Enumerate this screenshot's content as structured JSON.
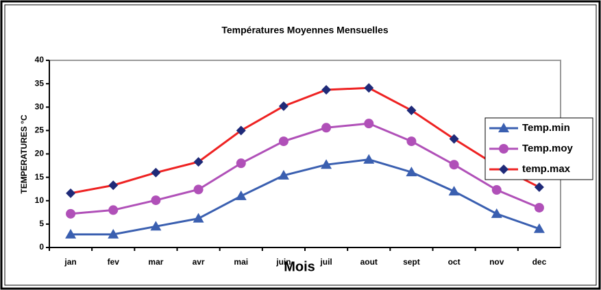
{
  "chart_data": {
    "type": "line",
    "title": "Températures Moyennes Mensuelles",
    "x_label": "Mois",
    "y_label": "TEMPERATURES °C",
    "categories": [
      "jan",
      "fev",
      "mar",
      "avr",
      "mai",
      "juin",
      "juil",
      "aout",
      "sept",
      "oct",
      "nov",
      "dec"
    ],
    "series": [
      {
        "name": "Temp.min",
        "color": "#3a5fb0",
        "marker": "triangle",
        "values": [
          2.8,
          2.8,
          4.5,
          6.2,
          11,
          15.4,
          17.7,
          18.8,
          16.1,
          12,
          7.2,
          4
        ]
      },
      {
        "name": "Temp.moy",
        "color": "#b050b8",
        "marker": "circle",
        "values": [
          7.2,
          8,
          10.1,
          12.4,
          18,
          22.7,
          25.6,
          26.5,
          22.7,
          17.7,
          12.3,
          8.5
        ]
      },
      {
        "name": "temp.max",
        "color": "#ee2222",
        "marker": "diamond",
        "values": [
          11.6,
          13.3,
          16,
          18.3,
          25,
          30.2,
          33.7,
          34.1,
          29.3,
          23.2,
          17.5,
          12.9
        ]
      }
    ],
    "ylim": [
      0,
      40
    ],
    "yticks": [
      0,
      5,
      10,
      15,
      20,
      25,
      30,
      35,
      40
    ]
  }
}
